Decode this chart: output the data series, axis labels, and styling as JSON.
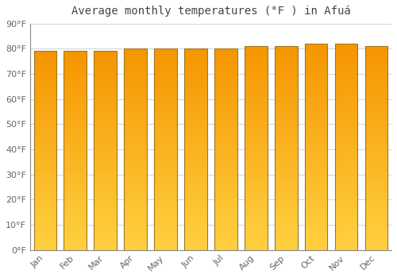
{
  "title": "Average monthly temperatures (°F ) in Afuá",
  "months": [
    "Jan",
    "Feb",
    "Mar",
    "Apr",
    "May",
    "Jun",
    "Jul",
    "Aug",
    "Sep",
    "Oct",
    "Nov",
    "Dec"
  ],
  "values": [
    79,
    79,
    79,
    80,
    80,
    80,
    80,
    81,
    81,
    82,
    82,
    81
  ],
  "ylim": [
    0,
    90
  ],
  "yticks": [
    0,
    10,
    20,
    30,
    40,
    50,
    60,
    70,
    80,
    90
  ],
  "ytick_labels": [
    "0°F",
    "10°F",
    "20°F",
    "30°F",
    "40°F",
    "50°F",
    "60°F",
    "70°F",
    "80°F",
    "90°F"
  ],
  "bar_color_bottom": "#FFD040",
  "bar_color_top": "#F59500",
  "bar_edge_color": "#A07820",
  "background_color": "#FFFFFF",
  "grid_color": "#CCCCCC",
  "title_fontsize": 10,
  "tick_fontsize": 8,
  "bar_width": 0.75
}
